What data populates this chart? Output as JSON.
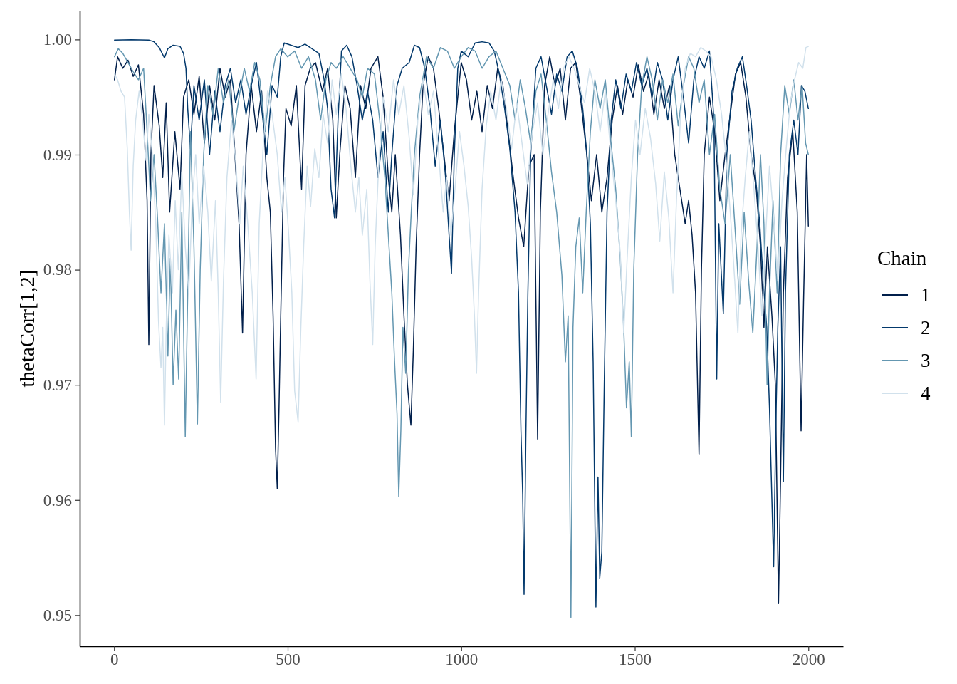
{
  "chart_data": {
    "type": "line",
    "ylabel": "thetaCorr[1,2]",
    "legend_title": "Chain",
    "legend": "right",
    "grid": false,
    "xlim": [
      -99,
      2100
    ],
    "xticks": [
      0,
      500,
      1000,
      1500,
      2000
    ],
    "ylim": [
      0.9473,
      1.0025
    ],
    "yticks": [
      {
        "value": 0.95,
        "label": "0.95"
      },
      0.96,
      0.97,
      0.98,
      0.99,
      {
        "value": 1,
        "label": "1.00"
      }
    ],
    "series": [
      {
        "name": "1",
        "color": "#011f4b",
        "x": [
          1,
          10,
          25,
          40,
          55,
          70,
          85,
          95,
          100,
          106,
          115,
          130,
          140,
          150,
          160,
          175,
          190,
          200,
          215,
          230,
          245,
          260,
          275,
          290,
          305,
          320,
          335,
          350,
          360,
          370,
          380,
          395,
          410,
          425,
          440,
          450,
          458,
          465,
          470,
          475,
          480,
          488,
          495,
          510,
          525,
          540,
          550,
          565,
          580,
          600,
          615,
          630,
          640,
          650,
          665,
          680,
          695,
          710,
          725,
          740,
          760,
          775,
          790,
          800,
          810,
          825,
          835,
          845,
          855,
          862,
          870,
          880,
          890,
          905,
          920,
          935,
          950,
          965,
          980,
          990,
          1000,
          1015,
          1030,
          1045,
          1060,
          1075,
          1090,
          1105,
          1120,
          1135,
          1150,
          1165,
          1180,
          1195,
          1210,
          1220,
          1228,
          1240,
          1255,
          1270,
          1285,
          1300,
          1315,
          1330,
          1345,
          1360,
          1375,
          1390,
          1405,
          1420,
          1435,
          1450,
          1465,
          1480,
          1495,
          1510,
          1525,
          1540,
          1555,
          1570,
          1585,
          1600,
          1615,
          1630,
          1645,
          1655,
          1665,
          1675,
          1685,
          1692,
          1700,
          1715,
          1730,
          1745,
          1760,
          1775,
          1790,
          1805,
          1820,
          1835,
          1850,
          1862,
          1872,
          1882,
          1895,
          1905,
          1914,
          1920,
          1928,
          1940,
          1955,
          1968,
          1979,
          1986,
          1995,
          2000
        ],
        "values": [
          0.9965,
          0.9985,
          0.9975,
          0.9982,
          0.9968,
          0.9978,
          0.9935,
          0.986,
          0.9735,
          0.99,
          0.996,
          0.9925,
          0.988,
          0.9945,
          0.985,
          0.992,
          0.987,
          0.995,
          0.9965,
          0.9935,
          0.9968,
          0.991,
          0.996,
          0.993,
          0.9975,
          0.995,
          0.9965,
          0.989,
          0.984,
          0.9745,
          0.99,
          0.996,
          0.992,
          0.9955,
          0.988,
          0.985,
          0.976,
          0.9645,
          0.961,
          0.968,
          0.976,
          0.988,
          0.994,
          0.9925,
          0.996,
          0.987,
          0.996,
          0.9975,
          0.998,
          0.9955,
          0.9975,
          0.993,
          0.9845,
          0.99,
          0.996,
          0.994,
          0.988,
          0.996,
          0.994,
          0.9975,
          0.9985,
          0.995,
          0.988,
          0.985,
          0.99,
          0.983,
          0.976,
          0.97,
          0.9665,
          0.973,
          0.982,
          0.99,
          0.996,
          0.9985,
          0.9975,
          0.994,
          0.99,
          0.986,
          0.992,
          0.995,
          0.998,
          0.9965,
          0.993,
          0.9955,
          0.992,
          0.996,
          0.994,
          0.9975,
          0.996,
          0.992,
          0.988,
          0.9845,
          0.982,
          0.989,
          0.99,
          0.9653,
          0.985,
          0.996,
          0.9985,
          0.996,
          0.9975,
          0.993,
          0.9975,
          0.998,
          0.9945,
          0.9905,
          0.986,
          0.99,
          0.985,
          0.988,
          0.993,
          0.996,
          0.9935,
          0.9965,
          0.995,
          0.9978,
          0.9955,
          0.997,
          0.9935,
          0.9965,
          0.994,
          0.996,
          0.99,
          0.987,
          0.984,
          0.986,
          0.983,
          0.978,
          0.964,
          0.98,
          0.99,
          0.995,
          0.992,
          0.986,
          0.99,
          0.9935,
          0.997,
          0.998,
          0.995,
          0.99,
          0.987,
          0.982,
          0.975,
          0.982,
          0.976,
          0.97,
          0.951,
          0.962,
          0.978,
          0.988,
          0.992,
          0.985,
          0.966,
          0.977,
          0.99,
          0.9838
        ]
      },
      {
        "name": "2",
        "color": "#03396c",
        "x": [
          1,
          50,
          100,
          115,
          130,
          145,
          155,
          170,
          190,
          200,
          207,
          212,
          220,
          230,
          245,
          260,
          275,
          290,
          305,
          320,
          335,
          350,
          365,
          380,
          395,
          410,
          425,
          440,
          455,
          470,
          480,
          490,
          510,
          530,
          550,
          570,
          590,
          605,
          615,
          625,
          635,
          645,
          655,
          670,
          685,
          700,
          715,
          730,
          745,
          760,
          775,
          790,
          800,
          815,
          830,
          850,
          865,
          880,
          895,
          910,
          925,
          940,
          955,
          965,
          972,
          980,
          990,
          1000,
          1020,
          1040,
          1060,
          1080,
          1095,
          1110,
          1125,
          1140,
          1155,
          1165,
          1172,
          1177,
          1181,
          1186,
          1192,
          1200,
          1215,
          1230,
          1245,
          1260,
          1275,
          1290,
          1305,
          1320,
          1335,
          1350,
          1362,
          1372,
          1380,
          1388,
          1394,
          1399,
          1405,
          1412,
          1420,
          1432,
          1445,
          1460,
          1475,
          1490,
          1505,
          1520,
          1535,
          1550,
          1565,
          1580,
          1595,
          1610,
          1625,
          1640,
          1655,
          1670,
          1685,
          1700,
          1715,
          1728,
          1736,
          1742,
          1755,
          1765,
          1780,
          1795,
          1810,
          1822,
          1835,
          1848,
          1860,
          1870,
          1880,
          1888,
          1900,
          1906,
          1912,
          1920,
          1928,
          1934,
          1945,
          1958,
          1970,
          1980,
          1990,
          2000
        ],
        "values": [
          0.99995,
          0.99998,
          0.99995,
          0.9998,
          0.9993,
          0.9984,
          0.9992,
          0.9995,
          0.9994,
          0.9988,
          0.9975,
          0.994,
          0.9905,
          0.996,
          0.993,
          0.9965,
          0.99,
          0.9955,
          0.992,
          0.996,
          0.9975,
          0.9945,
          0.9965,
          0.9935,
          0.996,
          0.998,
          0.994,
          0.99,
          0.996,
          0.995,
          0.9985,
          0.9997,
          0.9995,
          0.9993,
          0.9996,
          0.9992,
          0.9988,
          0.9965,
          0.994,
          0.987,
          0.9845,
          0.993,
          0.999,
          0.9995,
          0.9985,
          0.996,
          0.993,
          0.9955,
          0.993,
          0.988,
          0.992,
          0.985,
          0.99,
          0.996,
          0.9975,
          0.998,
          0.9995,
          0.9993,
          0.9975,
          0.994,
          0.989,
          0.993,
          0.988,
          0.983,
          0.9797,
          0.99,
          0.9975,
          0.999,
          0.9985,
          0.9997,
          0.9998,
          0.9997,
          0.999,
          0.997,
          0.994,
          0.9905,
          0.985,
          0.978,
          0.966,
          0.9605,
          0.9518,
          0.965,
          0.978,
          0.99,
          0.9975,
          0.9985,
          0.996,
          0.9935,
          0.997,
          0.9955,
          0.9985,
          0.999,
          0.9975,
          0.994,
          0.99,
          0.984,
          0.972,
          0.9507,
          0.962,
          0.9532,
          0.9555,
          0.97,
          0.985,
          0.993,
          0.9965,
          0.994,
          0.997,
          0.9955,
          0.998,
          0.996,
          0.9975,
          0.995,
          0.998,
          0.9965,
          0.993,
          0.9965,
          0.9985,
          0.995,
          0.991,
          0.9965,
          0.9985,
          0.9975,
          0.999,
          0.993,
          0.9705,
          0.984,
          0.9762,
          0.99,
          0.9955,
          0.9975,
          0.9985,
          0.996,
          0.993,
          0.988,
          0.984,
          0.979,
          0.975,
          0.968,
          0.9542,
          0.966,
          0.975,
          0.982,
          0.9616,
          0.978,
          0.99,
          0.993,
          0.99,
          0.996,
          0.9955,
          0.994
        ]
      },
      {
        "name": "3",
        "color": "#6497b1",
        "x": [
          1,
          12,
          25,
          40,
          55,
          70,
          85,
          95,
          105,
          115,
          125,
          135,
          145,
          155,
          162,
          170,
          178,
          186,
          195,
          205,
          212,
          220,
          230,
          240,
          248,
          258,
          270,
          285,
          300,
          315,
          330,
          345,
          360,
          375,
          390,
          405,
          420,
          435,
          450,
          465,
          480,
          500,
          520,
          540,
          560,
          580,
          595,
          610,
          625,
          640,
          660,
          680,
          700,
          715,
          730,
          750,
          765,
          780,
          790,
          800,
          808,
          815,
          820,
          826,
          832,
          840,
          848,
          856,
          865,
          880,
          900,
          920,
          940,
          960,
          980,
          1000,
          1020,
          1040,
          1060,
          1080,
          1100,
          1120,
          1140,
          1155,
          1170,
          1185,
          1200,
          1215,
          1230,
          1245,
          1260,
          1275,
          1290,
          1300,
          1308,
          1316,
          1322,
          1330,
          1340,
          1350,
          1360,
          1372,
          1385,
          1400,
          1415,
          1430,
          1445,
          1458,
          1468,
          1476,
          1484,
          1490,
          1497,
          1508,
          1520,
          1535,
          1550,
          1565,
          1580,
          1595,
          1610,
          1625,
          1640,
          1655,
          1670,
          1685,
          1700,
          1715,
          1730,
          1745,
          1760,
          1775,
          1790,
          1802,
          1815,
          1828,
          1840,
          1852,
          1862,
          1872,
          1881,
          1888,
          1898,
          1910,
          1920,
          1932,
          1945,
          1958,
          1970,
          1982,
          1992,
          2000
        ],
        "values": [
          0.9985,
          0.9992,
          0.9988,
          0.998,
          0.9972,
          0.9965,
          0.9975,
          0.992,
          0.986,
          0.99,
          0.9845,
          0.978,
          0.984,
          0.9725,
          0.981,
          0.97,
          0.9765,
          0.9705,
          0.985,
          0.9655,
          0.978,
          0.992,
          0.982,
          0.9666,
          0.98,
          0.99,
          0.996,
          0.9935,
          0.9975,
          0.9945,
          0.9965,
          0.992,
          0.995,
          0.9975,
          0.9955,
          0.998,
          0.9965,
          0.992,
          0.996,
          0.9985,
          0.9992,
          0.9985,
          0.999,
          0.9975,
          0.9985,
          0.9965,
          0.993,
          0.9965,
          0.998,
          0.9975,
          0.9985,
          0.9975,
          0.9965,
          0.995,
          0.9975,
          0.997,
          0.993,
          0.988,
          0.983,
          0.978,
          0.972,
          0.9675,
          0.9603,
          0.966,
          0.975,
          0.971,
          0.98,
          0.985,
          0.99,
          0.995,
          0.9985,
          0.9975,
          0.9993,
          0.999,
          0.9975,
          0.9985,
          0.9993,
          0.999,
          0.9975,
          0.9985,
          0.999,
          0.9975,
          0.996,
          0.993,
          0.9965,
          0.994,
          0.991,
          0.9955,
          0.997,
          0.993,
          0.9885,
          0.985,
          0.9795,
          0.972,
          0.976,
          0.9498,
          0.975,
          0.982,
          0.9845,
          0.978,
          0.985,
          0.992,
          0.9965,
          0.994,
          0.9965,
          0.9915,
          0.987,
          0.981,
          0.975,
          0.968,
          0.972,
          0.9655,
          0.98,
          0.99,
          0.996,
          0.9985,
          0.9965,
          0.993,
          0.9965,
          0.9945,
          0.997,
          0.9925,
          0.996,
          0.9985,
          0.9975,
          0.9945,
          0.9965,
          0.99,
          0.9935,
          0.987,
          0.984,
          0.99,
          0.983,
          0.977,
          0.985,
          0.979,
          0.9745,
          0.982,
          0.99,
          0.984,
          0.97,
          0.978,
          0.986,
          0.978,
          0.99,
          0.996,
          0.9935,
          0.9965,
          0.993,
          0.996,
          0.991,
          0.99
        ]
      },
      {
        "name": "4",
        "color": "#d1e1ec",
        "x": [
          1,
          10,
          20,
          30,
          38,
          44,
          49,
          55,
          62,
          72,
          82,
          92,
          100,
          110,
          120,
          128,
          135,
          140,
          145,
          150,
          158,
          168,
          176,
          185,
          195,
          205,
          215,
          225,
          235,
          245,
          258,
          270,
          280,
          292,
          300,
          307,
          315,
          325,
          338,
          350,
          362,
          372,
          385,
          398,
          409,
          418,
          430,
          442,
          455,
          470,
          482,
          492,
          502,
          512,
          520,
          530,
          538,
          546,
          556,
          566,
          578,
          590,
          602,
          615,
          628,
          640,
          655,
          668,
          682,
          695,
          705,
          715,
          728,
          737,
          745,
          752,
          762,
          775,
          790,
          805,
          820,
          835,
          850,
          862,
          875,
          890,
          905,
          920,
          935,
          948,
          958,
          970,
          982,
          995,
          1008,
          1020,
          1030,
          1038,
          1044,
          1050,
          1060,
          1072,
          1085,
          1100,
          1115,
          1130,
          1145,
          1160,
          1175,
          1190,
          1205,
          1220,
          1235,
          1250,
          1265,
          1280,
          1295,
          1310,
          1325,
          1340,
          1355,
          1370,
          1385,
          1400,
          1415,
          1430,
          1445,
          1458,
          1468,
          1478,
          1490,
          1502,
          1515,
          1530,
          1545,
          1560,
          1572,
          1585,
          1598,
          1610,
          1620,
          1632,
          1645,
          1660,
          1675,
          1690,
          1705,
          1720,
          1735,
          1750,
          1762,
          1775,
          1788,
          1797,
          1806,
          1818,
          1830,
          1842,
          1855,
          1866,
          1876,
          1888,
          1900,
          1912,
          1924,
          1936,
          1948,
          1960,
          1972,
          1984,
          1993,
          2000
        ],
        "values": [
          0.997,
          0.9965,
          0.9955,
          0.995,
          0.9905,
          0.985,
          0.9817,
          0.989,
          0.993,
          0.9955,
          0.993,
          0.9895,
          0.9935,
          0.99,
          0.984,
          0.9755,
          0.9715,
          0.975,
          0.9665,
          0.975,
          0.983,
          0.978,
          0.986,
          0.98,
          0.9885,
          0.982,
          0.978,
          0.986,
          0.99,
          0.984,
          0.989,
          0.985,
          0.979,
          0.986,
          0.978,
          0.9685,
          0.979,
          0.988,
          0.993,
          0.9895,
          0.984,
          0.989,
          0.984,
          0.978,
          0.9705,
          0.984,
          0.991,
          0.9955,
          0.9935,
          0.99,
          0.985,
          0.988,
          0.9835,
          0.978,
          0.9695,
          0.9668,
          0.975,
          0.982,
          0.989,
          0.9855,
          0.9905,
          0.988,
          0.9935,
          0.991,
          0.9965,
          0.9935,
          0.997,
          0.994,
          0.989,
          0.985,
          0.988,
          0.983,
          0.987,
          0.979,
          0.9735,
          0.982,
          0.989,
          0.995,
          0.992,
          0.9965,
          0.9935,
          0.996,
          0.9915,
          0.9865,
          0.993,
          0.9965,
          0.9935,
          0.9955,
          0.99,
          0.985,
          0.988,
          0.983,
          0.987,
          0.992,
          0.989,
          0.9855,
          0.981,
          0.976,
          0.971,
          0.978,
          0.987,
          0.9925,
          0.9955,
          0.993,
          0.9965,
          0.994,
          0.9905,
          0.9945,
          0.991,
          0.9875,
          0.992,
          0.9945,
          0.99,
          0.9935,
          0.9965,
          0.994,
          0.9975,
          0.9985,
          0.9975,
          0.996,
          0.9945,
          0.9975,
          0.9955,
          0.992,
          0.9955,
          0.9905,
          0.986,
          0.9815,
          0.9745,
          0.981,
          0.988,
          0.993,
          0.99,
          0.994,
          0.9915,
          0.9875,
          0.9825,
          0.9885,
          0.9845,
          0.978,
          0.986,
          0.9935,
          0.9975,
          0.9988,
          0.9985,
          0.9993,
          0.999,
          0.9985,
          0.9965,
          0.9935,
          0.99,
          0.985,
          0.979,
          0.9745,
          0.983,
          0.988,
          0.992,
          0.9875,
          0.982,
          0.976,
          0.9825,
          0.989,
          0.9845,
          0.979,
          0.986,
          0.9905,
          0.9945,
          0.9965,
          0.998,
          0.9975,
          0.9993,
          0.9994
        ]
      }
    ]
  }
}
